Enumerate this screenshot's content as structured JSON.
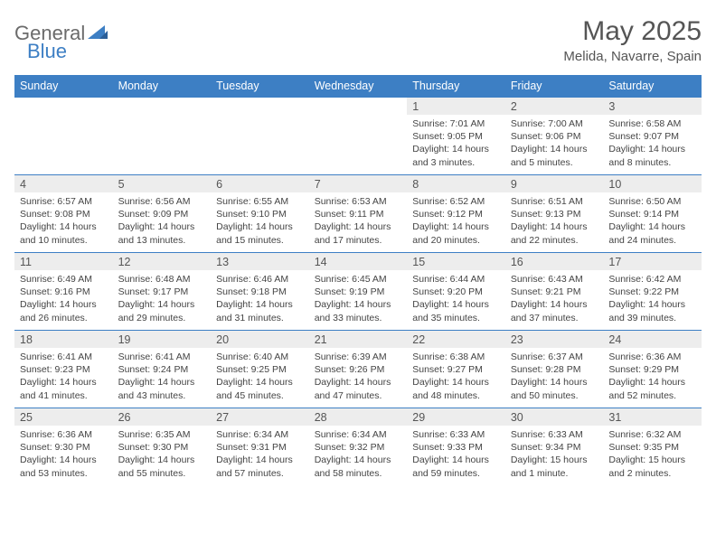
{
  "brand": {
    "part1": "General",
    "part2": "Blue"
  },
  "title": "May 2025",
  "subtitle": "Melida, Navarre, Spain",
  "colors": {
    "header_bg": "#3d7fc4",
    "header_text": "#ffffff",
    "daynum_bg": "#ededed",
    "border": "#3d7fc4",
    "page_bg": "#ffffff",
    "text": "#444444"
  },
  "dayHeaders": [
    "Sunday",
    "Monday",
    "Tuesday",
    "Wednesday",
    "Thursday",
    "Friday",
    "Saturday"
  ],
  "weeks": [
    [
      null,
      null,
      null,
      null,
      {
        "n": "1",
        "sr": "7:01 AM",
        "ss": "9:05 PM",
        "dl": "14 hours and 3 minutes."
      },
      {
        "n": "2",
        "sr": "7:00 AM",
        "ss": "9:06 PM",
        "dl": "14 hours and 5 minutes."
      },
      {
        "n": "3",
        "sr": "6:58 AM",
        "ss": "9:07 PM",
        "dl": "14 hours and 8 minutes."
      }
    ],
    [
      {
        "n": "4",
        "sr": "6:57 AM",
        "ss": "9:08 PM",
        "dl": "14 hours and 10 minutes."
      },
      {
        "n": "5",
        "sr": "6:56 AM",
        "ss": "9:09 PM",
        "dl": "14 hours and 13 minutes."
      },
      {
        "n": "6",
        "sr": "6:55 AM",
        "ss": "9:10 PM",
        "dl": "14 hours and 15 minutes."
      },
      {
        "n": "7",
        "sr": "6:53 AM",
        "ss": "9:11 PM",
        "dl": "14 hours and 17 minutes."
      },
      {
        "n": "8",
        "sr": "6:52 AM",
        "ss": "9:12 PM",
        "dl": "14 hours and 20 minutes."
      },
      {
        "n": "9",
        "sr": "6:51 AM",
        "ss": "9:13 PM",
        "dl": "14 hours and 22 minutes."
      },
      {
        "n": "10",
        "sr": "6:50 AM",
        "ss": "9:14 PM",
        "dl": "14 hours and 24 minutes."
      }
    ],
    [
      {
        "n": "11",
        "sr": "6:49 AM",
        "ss": "9:16 PM",
        "dl": "14 hours and 26 minutes."
      },
      {
        "n": "12",
        "sr": "6:48 AM",
        "ss": "9:17 PM",
        "dl": "14 hours and 29 minutes."
      },
      {
        "n": "13",
        "sr": "6:46 AM",
        "ss": "9:18 PM",
        "dl": "14 hours and 31 minutes."
      },
      {
        "n": "14",
        "sr": "6:45 AM",
        "ss": "9:19 PM",
        "dl": "14 hours and 33 minutes."
      },
      {
        "n": "15",
        "sr": "6:44 AM",
        "ss": "9:20 PM",
        "dl": "14 hours and 35 minutes."
      },
      {
        "n": "16",
        "sr": "6:43 AM",
        "ss": "9:21 PM",
        "dl": "14 hours and 37 minutes."
      },
      {
        "n": "17",
        "sr": "6:42 AM",
        "ss": "9:22 PM",
        "dl": "14 hours and 39 minutes."
      }
    ],
    [
      {
        "n": "18",
        "sr": "6:41 AM",
        "ss": "9:23 PM",
        "dl": "14 hours and 41 minutes."
      },
      {
        "n": "19",
        "sr": "6:41 AM",
        "ss": "9:24 PM",
        "dl": "14 hours and 43 minutes."
      },
      {
        "n": "20",
        "sr": "6:40 AM",
        "ss": "9:25 PM",
        "dl": "14 hours and 45 minutes."
      },
      {
        "n": "21",
        "sr": "6:39 AM",
        "ss": "9:26 PM",
        "dl": "14 hours and 47 minutes."
      },
      {
        "n": "22",
        "sr": "6:38 AM",
        "ss": "9:27 PM",
        "dl": "14 hours and 48 minutes."
      },
      {
        "n": "23",
        "sr": "6:37 AM",
        "ss": "9:28 PM",
        "dl": "14 hours and 50 minutes."
      },
      {
        "n": "24",
        "sr": "6:36 AM",
        "ss": "9:29 PM",
        "dl": "14 hours and 52 minutes."
      }
    ],
    [
      {
        "n": "25",
        "sr": "6:36 AM",
        "ss": "9:30 PM",
        "dl": "14 hours and 53 minutes."
      },
      {
        "n": "26",
        "sr": "6:35 AM",
        "ss": "9:30 PM",
        "dl": "14 hours and 55 minutes."
      },
      {
        "n": "27",
        "sr": "6:34 AM",
        "ss": "9:31 PM",
        "dl": "14 hours and 57 minutes."
      },
      {
        "n": "28",
        "sr": "6:34 AM",
        "ss": "9:32 PM",
        "dl": "14 hours and 58 minutes."
      },
      {
        "n": "29",
        "sr": "6:33 AM",
        "ss": "9:33 PM",
        "dl": "14 hours and 59 minutes."
      },
      {
        "n": "30",
        "sr": "6:33 AM",
        "ss": "9:34 PM",
        "dl": "15 hours and 1 minute."
      },
      {
        "n": "31",
        "sr": "6:32 AM",
        "ss": "9:35 PM",
        "dl": "15 hours and 2 minutes."
      }
    ]
  ],
  "labels": {
    "sunrise": "Sunrise: ",
    "sunset": "Sunset: ",
    "daylight": "Daylight: "
  }
}
